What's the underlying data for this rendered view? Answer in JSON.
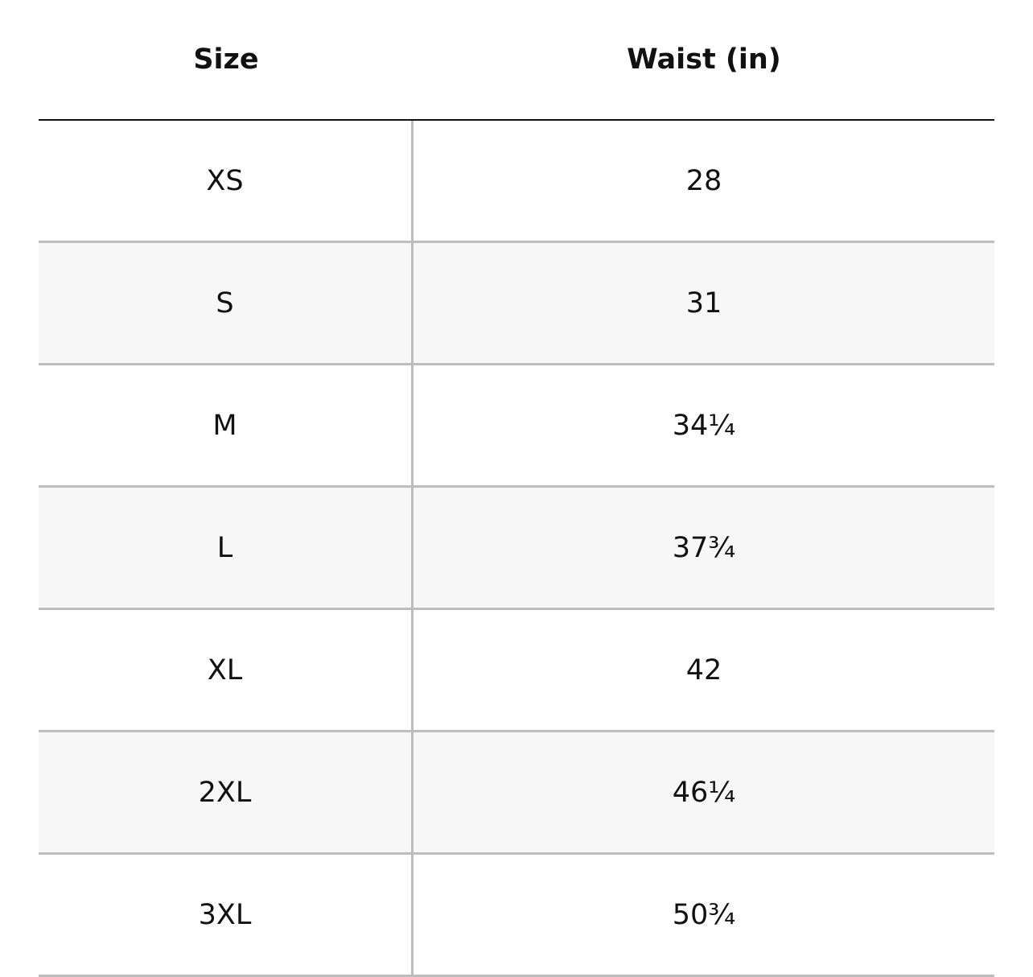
{
  "table": {
    "header": [
      "Size",
      "Waist (in)"
    ],
    "rows": [
      [
        "XS",
        "28"
      ],
      [
        "S",
        "31"
      ],
      [
        "M",
        "34¼"
      ],
      [
        "L",
        "37¾"
      ],
      [
        "XL",
        "42"
      ],
      [
        "2XL",
        "46¼"
      ],
      [
        "3XL",
        "50¾"
      ]
    ]
  }
}
